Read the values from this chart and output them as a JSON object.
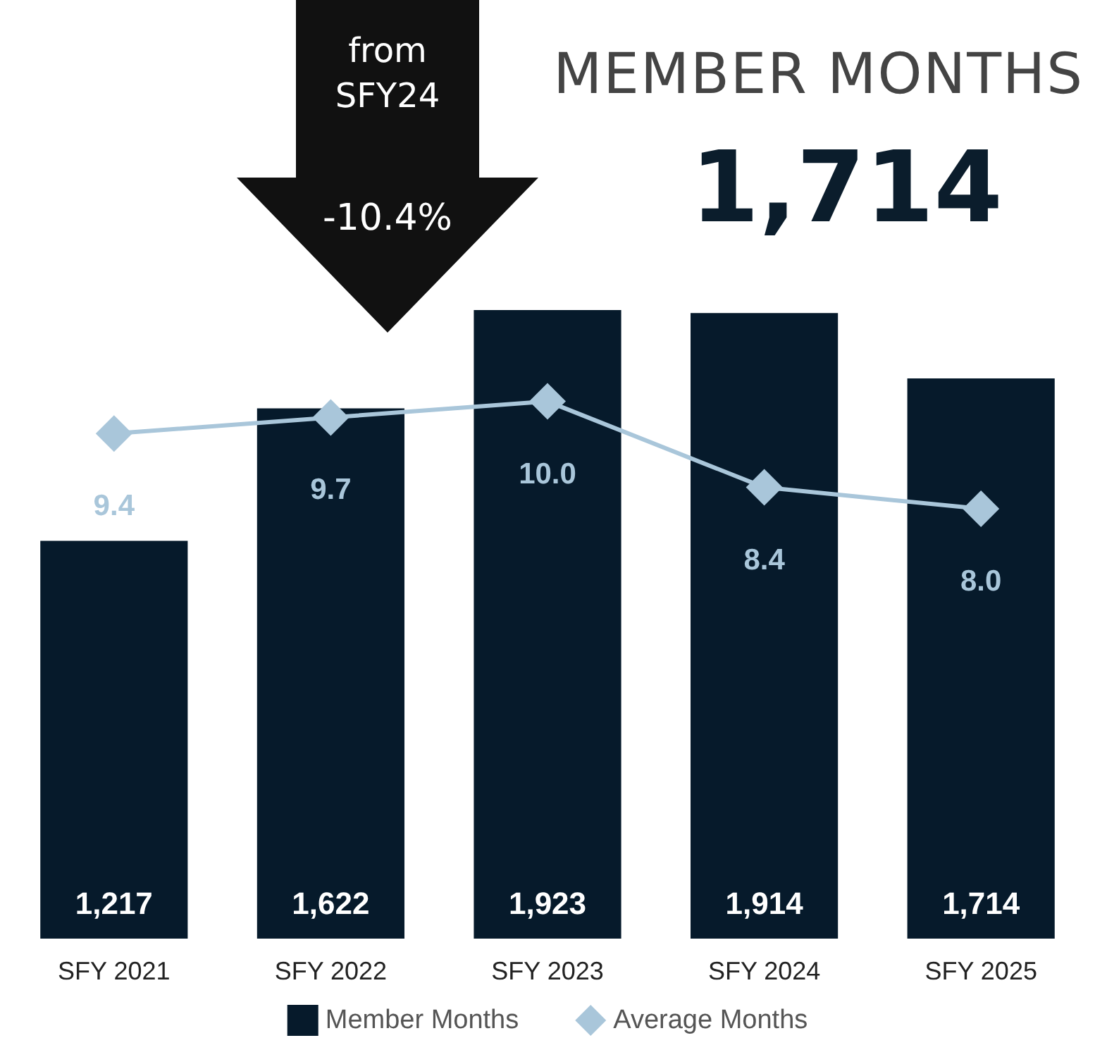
{
  "chart_data": {
    "type": "bar",
    "title": "MEMBER MONTHS",
    "subtitle": "1,714",
    "annotations": [
      "from SFY24",
      "-10.4%"
    ],
    "categories": [
      "SFY 2021",
      "SFY 2022",
      "SFY 2023",
      "SFY 2024",
      "SFY 2025"
    ],
    "series": [
      {
        "name": "Member Months",
        "color": "#061a2b",
        "values": [
          1217,
          1622,
          1923,
          1914,
          1714
        ],
        "value_labels": [
          "1,217",
          "1,622",
          "1,923",
          "1,914",
          "1,714"
        ]
      },
      {
        "name": "Average Months",
        "type": "line",
        "axis": "y2",
        "color": "#a9c6da",
        "values": [
          9.4,
          9.7,
          10.0,
          8.4,
          8.0
        ],
        "value_labels": [
          "9.4",
          "9.7",
          "10.0",
          "8.4",
          "8.0"
        ]
      }
    ],
    "legend": "bottom",
    "marker": "diamond",
    "line_style": "solid"
  }
}
